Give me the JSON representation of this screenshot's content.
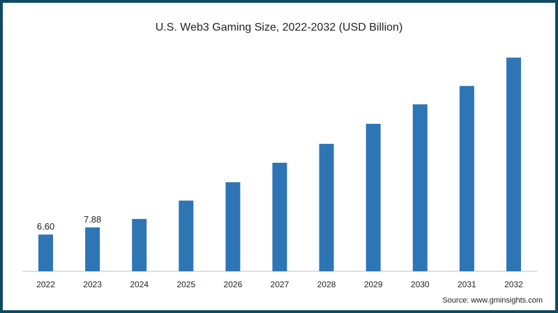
{
  "chart_data": {
    "type": "bar",
    "title": "U.S. Web3 Gaming Size, 2022-2032 (USD Billion)",
    "xlabel": "",
    "ylabel": "",
    "categories": [
      "2022",
      "2023",
      "2024",
      "2025",
      "2026",
      "2027",
      "2028",
      "2029",
      "2030",
      "2031",
      "2032"
    ],
    "values": [
      6.6,
      7.88,
      9.4,
      12.7,
      16.0,
      19.5,
      22.9,
      26.5,
      30.0,
      33.3,
      38.4
    ],
    "data_labels": {
      "0": "6.60",
      "1": "7.88"
    },
    "ylim": [
      0,
      40
    ],
    "grid": false,
    "legend": "none",
    "bar_color": "#2e75b6",
    "axis_color": "#bfbfbf"
  },
  "source": "Source: www.gminsights.com",
  "colors": {
    "frame": "#0e4b62",
    "text": "#222222"
  }
}
